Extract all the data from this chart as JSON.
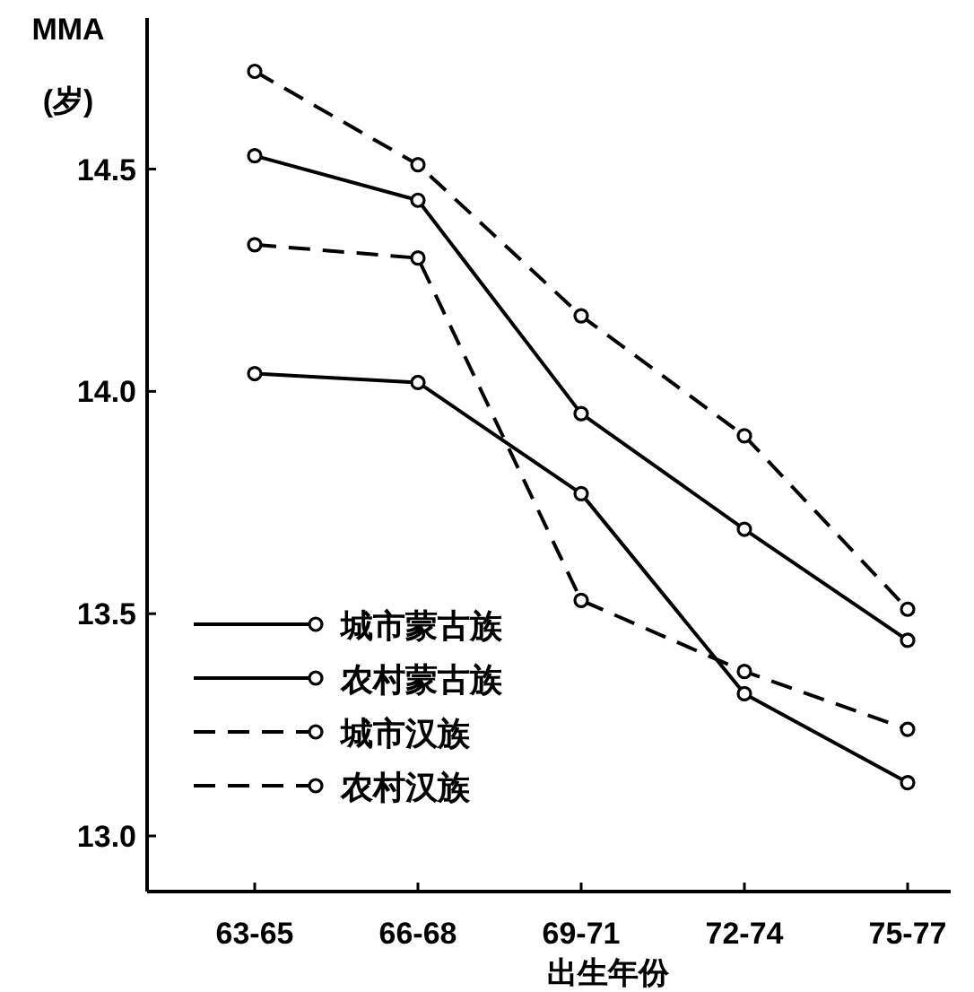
{
  "chart_data": {
    "type": "line",
    "ylabel": "MMA\n(岁)",
    "xlabel": "出生年份",
    "categories": [
      "63-65",
      "66-68",
      "69-71",
      "72-74",
      "75-77"
    ],
    "series": [
      {
        "name": "城市蒙古族",
        "color": "#000000",
        "marker": "circle",
        "line_style": "solid",
        "values": [
          14.04,
          14.02,
          13.77,
          13.32,
          13.12
        ]
      },
      {
        "name": "农村蒙古族",
        "color": "#000000",
        "marker": "circle",
        "line_style": "solid",
        "values": [
          14.53,
          14.43,
          13.95,
          13.69,
          13.44
        ]
      },
      {
        "name": "城市汉族",
        "color": "#000000",
        "marker": "circle",
        "line_style": "dashed",
        "values": [
          14.33,
          14.3,
          13.53,
          13.37,
          13.24
        ]
      },
      {
        "name": "农村汉族",
        "color": "#000000",
        "marker": "circle",
        "line_style": "dashed",
        "values": [
          14.72,
          14.51,
          14.17,
          13.9,
          13.51
        ]
      }
    ],
    "ylim": [
      12.875,
      14.84
    ],
    "yticks": [
      {
        "value": 13,
        "label": "13.0"
      },
      13.5,
      {
        "value": 14,
        "label": "14.0"
      },
      14.5
    ],
    "grid": false,
    "legend": "left"
  }
}
